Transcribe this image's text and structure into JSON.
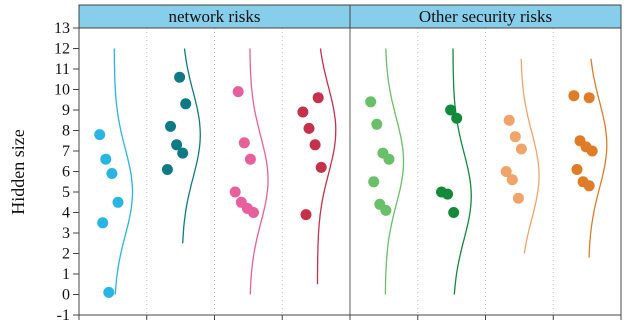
{
  "chart_data": {
    "type": "scatter",
    "ylabel": "Hidden size",
    "ylim": [
      -1,
      13
    ],
    "yticks": [
      -1,
      0,
      1,
      2,
      3,
      4,
      5,
      6,
      7,
      8,
      9,
      10,
      11,
      12,
      13
    ],
    "grid": "vertical dotted separators",
    "panels": [
      {
        "label": "network risks",
        "header_color": "#87ceeb",
        "series": [
          {
            "color": "#29b5e3",
            "values": [
              7.8,
              6.6,
              5.9,
              4.5,
              3.5,
              0.1
            ],
            "curve_range": [
              0.0,
              12.0
            ],
            "curve_peak": 5.0
          },
          {
            "color": "#0f7a86",
            "values": [
              10.6,
              9.3,
              8.2,
              7.3,
              6.9,
              6.1
            ],
            "curve_range": [
              2.5,
              12.0
            ],
            "curve_peak": 7.8
          },
          {
            "color": "#e7609b",
            "values": [
              9.9,
              7.4,
              6.6,
              5.0,
              4.5,
              4.2,
              4.0
            ],
            "curve_range": [
              0.0,
              12.0
            ],
            "curve_peak": 5.6
          },
          {
            "color": "#c5304a",
            "values": [
              9.6,
              8.9,
              8.1,
              7.3,
              6.2,
              3.9
            ],
            "curve_range": [
              0.5,
              12.0
            ],
            "curve_peak": 8.0
          }
        ]
      },
      {
        "label": "Other security risks",
        "header_color": "#87ceeb",
        "series": [
          {
            "color": "#6abf69",
            "values": [
              9.4,
              8.3,
              6.9,
              6.6,
              5.5,
              4.4,
              4.1
            ],
            "curve_range": [
              0.0,
              12.0
            ],
            "curve_peak": 6.5
          },
          {
            "color": "#138a3a",
            "values": [
              9.0,
              8.6,
              5.0,
              4.9,
              4.0
            ],
            "curve_range": [
              0.0,
              12.0
            ],
            "curve_peak": 4.8
          },
          {
            "color": "#f0a46a",
            "values": [
              8.5,
              7.7,
              7.1,
              6.0,
              5.6,
              4.7
            ],
            "curve_range": [
              2.0,
              11.5
            ],
            "curve_peak": 5.8
          },
          {
            "color": "#e07b27",
            "values": [
              9.6,
              9.7,
              7.5,
              7.2,
              7.0,
              6.1,
              5.5,
              5.3
            ],
            "curve_range": [
              1.8,
              11.5
            ],
            "curve_peak": 7.3
          }
        ]
      }
    ]
  }
}
